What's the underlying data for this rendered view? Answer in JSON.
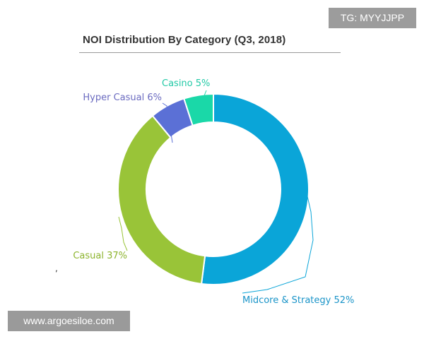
{
  "watermarks": {
    "top_right": "TG: MYYJJPP",
    "bottom_left": "www.argoesiloe.com"
  },
  "stray_mark": ",",
  "chart_data": {
    "type": "pie",
    "variant": "donut",
    "title": "NOI Distribution By Category (Q3, 2018)",
    "categories": [
      "Midcore & Strategy",
      "Casual",
      "Hyper Casual",
      "Casino"
    ],
    "values": [
      52,
      37,
      6,
      5
    ],
    "unit": "%",
    "labels": [
      "Midcore & Strategy 52%",
      "Casual 37%",
      "Hyper Casual 6%",
      "Casino 5%"
    ],
    "colors": [
      "#0aa5d8",
      "#99c438",
      "#5b70d6",
      "#1ad8a8"
    ],
    "label_colors": [
      "#1a94c8",
      "#8db42e",
      "#6b6bc0",
      "#22c9a6"
    ],
    "start_angle_deg": 0,
    "direction": "clockwise",
    "legend": "none"
  }
}
